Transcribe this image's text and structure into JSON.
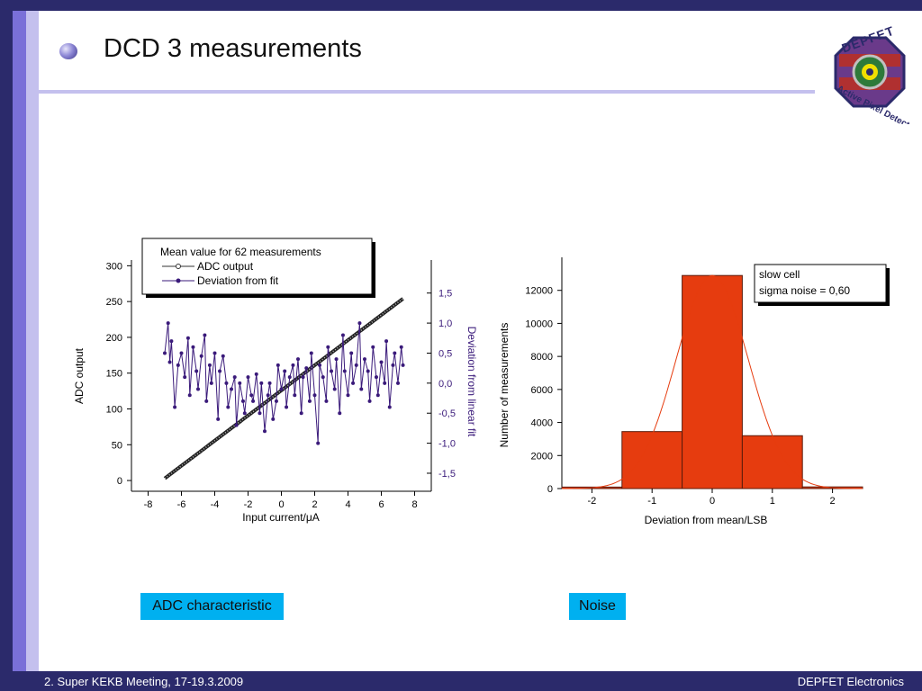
{
  "slide": {
    "title": "DCD 3 measurements",
    "footer_left": "2. Super KEKB Meeting, 17-19.3.2009",
    "footer_right": "DEPFET Electronics",
    "caption_left": "ADC characteristic",
    "caption_right": "Noise"
  },
  "logo": {
    "top_text": "DEPFET",
    "bottom_text": "Active Pixel Detector"
  },
  "colors": {
    "dark_navy": "#2b2a6b",
    "mid_purple": "#7a70d8",
    "light_purple": "#c4c0ee",
    "caption_bg": "#00b0f0",
    "bar_fill": "#e63c0f",
    "deviation_series": "#3a1a7a"
  },
  "chart_data": [
    {
      "type": "scatter",
      "legend_title": "Mean value for 62 measurements",
      "xlabel": "Input current/μA",
      "ylabel": "ADC output",
      "y2label": "Deviation from linear fit",
      "xlim": [
        -9,
        9
      ],
      "ylim": [
        -15,
        308
      ],
      "y2lim": [
        -1.8,
        2.05
      ],
      "x_ticks": [
        "-8",
        "-6",
        "-4",
        "-2",
        "0",
        "2",
        "4",
        "6",
        "8"
      ],
      "y_ticks": [
        "0",
        "50",
        "100",
        "150",
        "200",
        "250",
        "300"
      ],
      "y2_ticks": [
        "-1,5",
        "-1,0",
        "-0,5",
        "0,0",
        "0,5",
        "1,0",
        "1,5"
      ],
      "y2_tick_values": [
        -1.5,
        -1.0,
        -0.5,
        0.0,
        0.5,
        1.0,
        1.5
      ],
      "legend_position": "top",
      "series": [
        {
          "name": "ADC output",
          "axis": "left",
          "x_start": -7.0,
          "x_end": 7.3,
          "y_start": 3,
          "y_end": 254,
          "num_points": 200
        },
        {
          "name": "Deviation from fit",
          "axis": "right",
          "x": [
            -7.0,
            -6.8,
            -6.7,
            -6.6,
            -6.4,
            -6.2,
            -6.0,
            -5.8,
            -5.6,
            -5.5,
            -5.3,
            -5.1,
            -5.0,
            -4.8,
            -4.6,
            -4.5,
            -4.3,
            -4.2,
            -4.0,
            -3.8,
            -3.7,
            -3.5,
            -3.3,
            -3.2,
            -3.0,
            -2.8,
            -2.7,
            -2.5,
            -2.3,
            -2.2,
            -2.0,
            -1.8,
            -1.7,
            -1.5,
            -1.3,
            -1.2,
            -1.0,
            -0.8,
            -0.7,
            -0.5,
            -0.3,
            -0.2,
            0.0,
            0.2,
            0.3,
            0.5,
            0.7,
            0.8,
            1.0,
            1.2,
            1.3,
            1.5,
            1.7,
            1.8,
            2.0,
            2.2,
            2.3,
            2.5,
            2.7,
            2.8,
            3.0,
            3.2,
            3.3,
            3.5,
            3.7,
            3.8,
            4.0,
            4.2,
            4.3,
            4.5,
            4.7,
            4.8,
            5.0,
            5.2,
            5.3,
            5.5,
            5.7,
            5.8,
            6.0,
            6.2,
            6.3,
            6.5,
            6.7,
            6.8,
            7.0,
            7.2,
            7.3
          ],
          "values": [
            0.5,
            1.0,
            0.35,
            0.7,
            -0.4,
            0.3,
            0.5,
            0.1,
            0.75,
            -0.2,
            0.6,
            0.2,
            -0.1,
            0.45,
            0.8,
            -0.3,
            0.3,
            0.0,
            0.5,
            -0.6,
            0.2,
            0.45,
            0.0,
            -0.4,
            -0.1,
            0.1,
            -0.7,
            0.0,
            -0.3,
            -0.5,
            0.1,
            -0.2,
            -0.3,
            0.15,
            -0.5,
            0.0,
            -0.8,
            -0.2,
            0.0,
            -0.6,
            -0.3,
            0.3,
            -0.1,
            0.2,
            -0.4,
            0.1,
            0.3,
            -0.2,
            0.4,
            -0.5,
            0.1,
            0.25,
            -0.3,
            0.5,
            -0.2,
            -1.0,
            0.3,
            0.1,
            -0.3,
            0.6,
            0.2,
            -0.1,
            0.4,
            -0.5,
            0.8,
            0.2,
            -0.2,
            0.5,
            0.0,
            0.3,
            1.0,
            -0.1,
            0.4,
            0.2,
            -0.3,
            0.6,
            0.1,
            -0.2,
            0.35,
            0.0,
            0.7,
            -0.4,
            0.3,
            0.5,
            0.0,
            0.6,
            0.3
          ]
        }
      ]
    },
    {
      "type": "bar",
      "legend_text": [
        "slow cell",
        "sigma noise = 0,60"
      ],
      "xlabel": "Deviation from mean/LSB",
      "ylabel": "Number of measurements",
      "xlim": [
        -2.5,
        2.5
      ],
      "ylim": [
        0,
        14000
      ],
      "x_ticks": [
        "-2",
        "-1",
        "0",
        "1",
        "2"
      ],
      "y_ticks": [
        "0",
        "2000",
        "4000",
        "6000",
        "8000",
        "10000",
        "12000"
      ],
      "legend_position": "top-right",
      "categories": [
        "-2",
        "-1",
        "0",
        "1",
        "2"
      ],
      "values": [
        90,
        3450,
        12900,
        3200,
        100
      ],
      "fit": "gaussian",
      "fit_sigma": 0.6
    }
  ]
}
